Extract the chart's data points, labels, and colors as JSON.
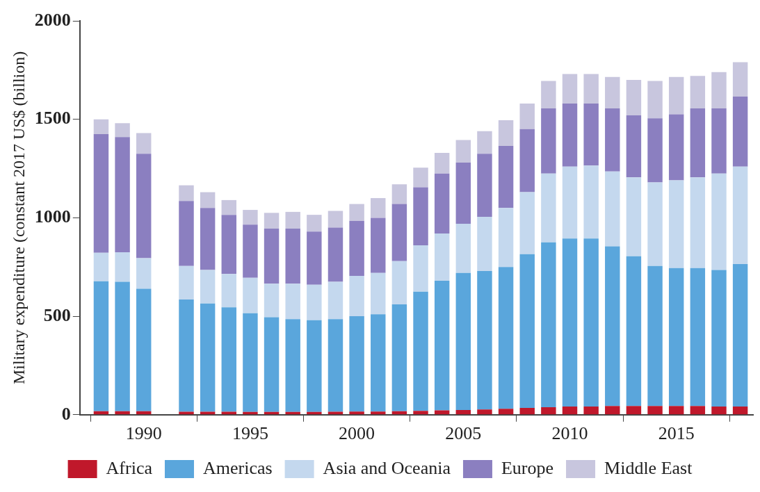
{
  "chart_data": {
    "type": "bar",
    "stacked": true,
    "ylabel": "Military expenditure (constant 2017 US$ (billion)",
    "x": [
      1988,
      1989,
      1990,
      1992,
      1993,
      1994,
      1995,
      1996,
      1997,
      1998,
      1999,
      2000,
      2001,
      2002,
      2003,
      2004,
      2005,
      2006,
      2007,
      2008,
      2009,
      2010,
      2011,
      2012,
      2013,
      2014,
      2015,
      2016,
      2017,
      2018
    ],
    "xlim": [
      1987,
      2018.6
    ],
    "xticks": [
      1990,
      1995,
      2000,
      2005,
      2010,
      2015
    ],
    "ylim": [
      0,
      2000
    ],
    "yticks": [
      0,
      500,
      1000,
      1500,
      2000
    ],
    "grid": false,
    "legend": "bottom",
    "series": [
      {
        "name": "Africa",
        "color": "#c0182b",
        "values": [
          18,
          18,
          18,
          15,
          15,
          15,
          14,
          14,
          14,
          14,
          15,
          16,
          16,
          18,
          20,
          22,
          24,
          27,
          30,
          35,
          38,
          42,
          42,
          44,
          44,
          44,
          44,
          44,
          42,
          42
        ]
      },
      {
        "name": "Americas",
        "color": "#5aa6dc",
        "values": [
          660,
          657,
          622,
          570,
          550,
          530,
          501,
          481,
          471,
          466,
          470,
          484,
          494,
          542,
          605,
          658,
          696,
          703,
          720,
          780,
          837,
          853,
          853,
          811,
          761,
          711,
          701,
          701,
          693,
          723
        ]
      },
      {
        "name": "Asia and Oceania",
        "color": "#c4d8ee",
        "values": [
          144,
          150,
          155,
          170,
          170,
          170,
          180,
          170,
          180,
          180,
          190,
          205,
          210,
          220,
          235,
          240,
          250,
          275,
          300,
          315,
          350,
          365,
          370,
          380,
          400,
          425,
          445,
          460,
          490,
          495
        ]
      },
      {
        "name": "Europe",
        "color": "#8b7fc0",
        "values": [
          603,
          585,
          530,
          330,
          315,
          300,
          270,
          280,
          280,
          270,
          275,
          280,
          280,
          290,
          295,
          305,
          310,
          320,
          315,
          320,
          330,
          320,
          315,
          320,
          315,
          325,
          335,
          350,
          330,
          355
        ]
      },
      {
        "name": "Middle East",
        "color": "#c8c6de",
        "values": [
          75,
          70,
          105,
          80,
          80,
          75,
          75,
          80,
          85,
          85,
          85,
          85,
          100,
          100,
          100,
          105,
          115,
          115,
          130,
          130,
          140,
          150,
          150,
          160,
          180,
          190,
          190,
          165,
          185,
          175
        ]
      }
    ]
  }
}
